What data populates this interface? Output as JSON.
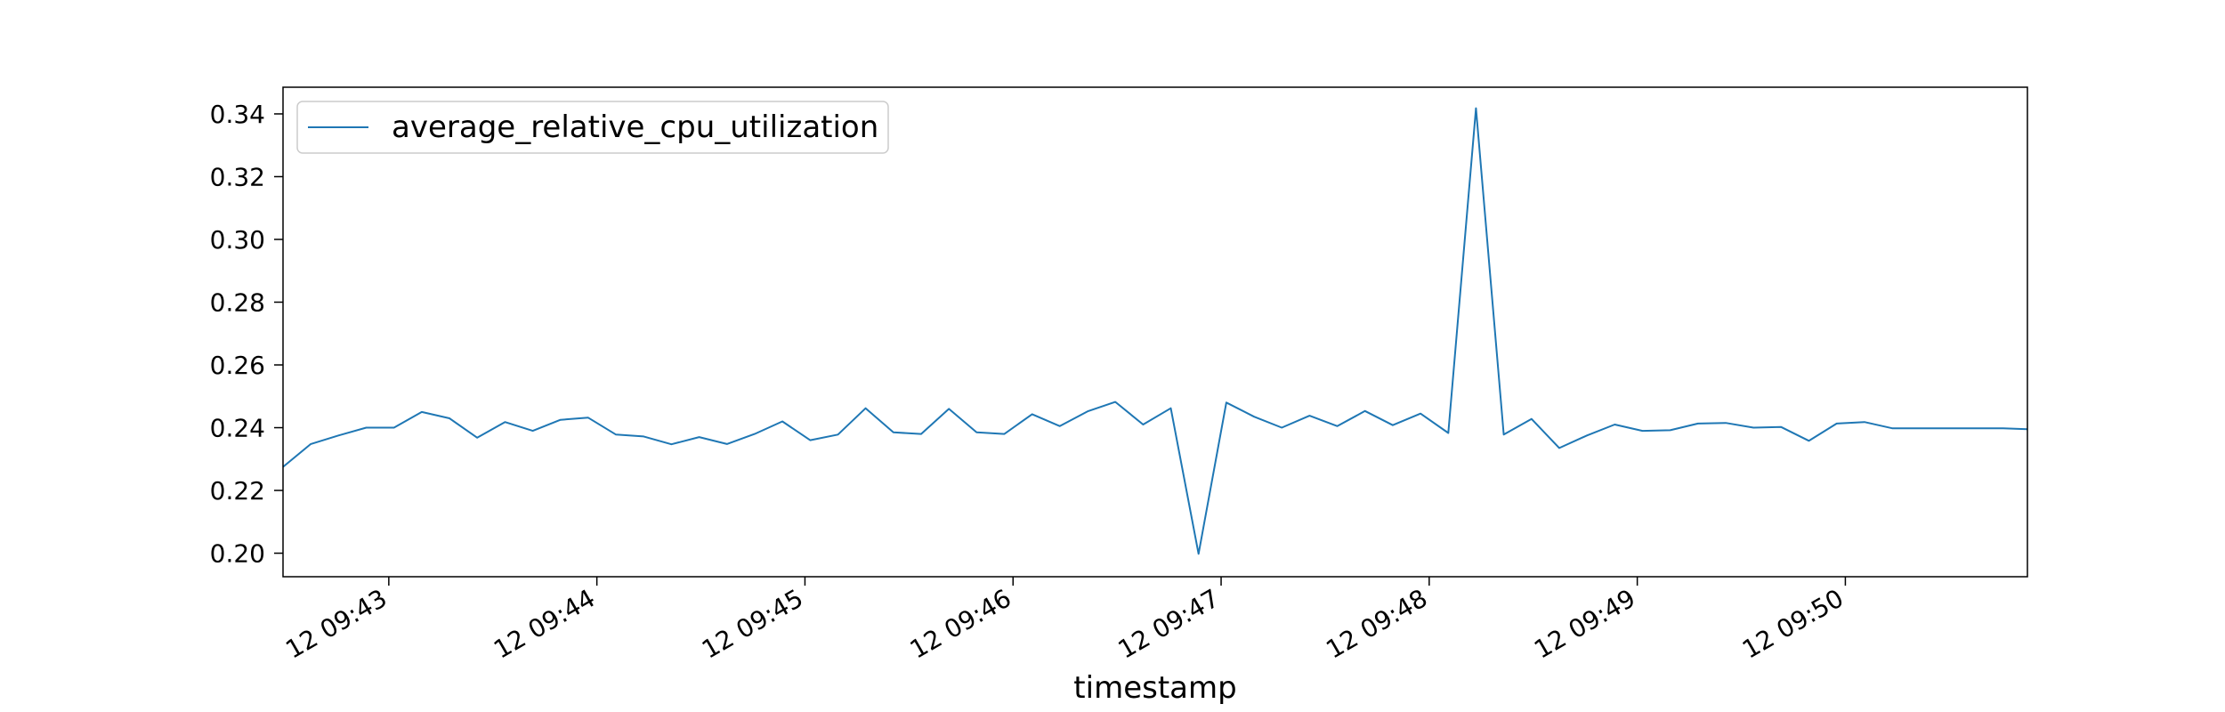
{
  "chart_data": {
    "type": "line",
    "title": "",
    "xlabel": "timestamp",
    "ylabel": "",
    "grid": false,
    "legend_position": "top-left",
    "x_tick_labels": [
      "12 09:43",
      "12 09:44",
      "12 09:45",
      "12 09:46",
      "12 09:47",
      "12 09:48",
      "12 09:49",
      "12 09:50"
    ],
    "x_tick_values": [
      60,
      120,
      180,
      240,
      300,
      360,
      420,
      480
    ],
    "xlim": [
      29.5,
      532.5
    ],
    "y_ticks": [
      0.2,
      0.22,
      0.24,
      0.26,
      0.28,
      0.3,
      0.32,
      0.34
    ],
    "ylim": [
      0.1925,
      0.3485
    ],
    "colors": {
      "series": "#1f77b4"
    },
    "series": [
      {
        "name": "average_relative_cpu_utilization",
        "x": [
          29.5,
          37.5,
          45.5,
          53.5,
          61.5,
          69.5,
          77.5,
          85.5,
          93.5,
          101.5,
          109.5,
          117.5,
          125.5,
          133.5,
          141.5,
          149.5,
          157.5,
          165.5,
          173.5,
          181.5,
          189.5,
          197.5,
          205.5,
          213.5,
          221.5,
          229.5,
          237.5,
          245.5,
          253.5,
          261.5,
          269.5,
          277.5,
          285.5,
          293.5,
          301.5,
          309.5,
          317.5,
          325.5,
          333.5,
          341.5,
          349.5,
          357.5,
          365.5,
          373.5,
          381.5,
          389.5,
          397.5,
          405.5,
          413.5,
          421.5,
          429.5,
          437.5,
          445.5,
          453.5,
          461.5,
          469.5,
          477.5,
          485.5,
          493.5,
          501.5,
          509.5,
          517.5,
          525.5,
          532.5
        ],
        "values": [
          0.2275,
          0.2348,
          0.2375,
          0.24,
          0.24,
          0.245,
          0.243,
          0.2368,
          0.2418,
          0.239,
          0.2425,
          0.2432,
          0.2378,
          0.2372,
          0.2347,
          0.237,
          0.2348,
          0.238,
          0.242,
          0.236,
          0.2378,
          0.2462,
          0.2385,
          0.238,
          0.246,
          0.2385,
          0.238,
          0.2443,
          0.2405,
          0.2452,
          0.2482,
          0.241,
          0.2462,
          0.1998,
          0.248,
          0.2435,
          0.24,
          0.2438,
          0.2405,
          0.2453,
          0.2408,
          0.2445,
          0.2383,
          0.3418,
          0.2378,
          0.2428,
          0.2335,
          0.2375,
          0.241,
          0.239,
          0.2392,
          0.2413,
          0.2415,
          0.24,
          0.2402,
          0.2358,
          0.2413,
          0.2418,
          0.2398,
          0.2398,
          0.2398,
          0.2398,
          0.2398,
          0.2395
        ]
      }
    ]
  }
}
